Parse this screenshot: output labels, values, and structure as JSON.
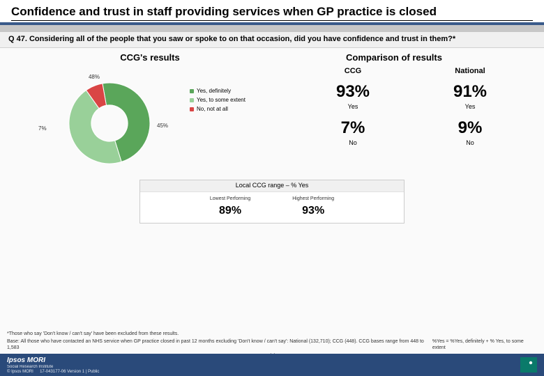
{
  "title": "Confidence and trust in staff providing services when GP practice is closed",
  "question": "Q 47. Considering all of the people that you saw or spoke to on that occasion, did you have confidence and trust in them?*",
  "subhead_left": "CCG's results",
  "subhead_right": "Comparison of results",
  "pie": {
    "type": "pie",
    "slices": [
      {
        "label": "Yes, definitely",
        "value": 48,
        "color": "#5aa65a",
        "text": "48%"
      },
      {
        "label": "Yes, to some extent",
        "value": 45,
        "color": "#99d099",
        "text": "45%"
      },
      {
        "label": "No, not at all",
        "value": 7,
        "color": "#d94545",
        "text": "7%"
      }
    ],
    "inner_radius_ratio": 0.45,
    "background_color": "#ffffff",
    "label_fontsize": 8
  },
  "legend": {
    "items": [
      {
        "sw": "#5aa65a",
        "label": "Yes, definitely"
      },
      {
        "sw": "#99d099",
        "label": "Yes, to some extent"
      },
      {
        "sw": "#d94545",
        "label": "No, not at all"
      }
    ]
  },
  "comparison": {
    "head": {
      "left": "CCG",
      "right": "National"
    },
    "rows": [
      {
        "left_big": "93%",
        "right_big": "91%",
        "sub": "Yes"
      },
      {
        "left_big": "7%",
        "right_big": "9%",
        "sub": "No"
      }
    ]
  },
  "range": {
    "title": "Local CCG range – % Yes",
    "low_label": "Lowest\nPerforming",
    "low_value": "89%",
    "high_label": "Highest\nPerforming",
    "high_value": "93%"
  },
  "footnotes": {
    "note1": "*Those who say 'Don't know / can't say' have been excluded from these results.",
    "note2_left": "Base: All those who have contacted an NHS service when GP practice closed in past 12 months excluding 'Don't know / can't say': National (132,710); CCG (448). CCG bases range from 448 to 1,583",
    "note2_right": "%Yes = %Yes, definitely + % Yes, to some extent"
  },
  "page_number": "44",
  "footer": {
    "brand": "Ipsos MORI",
    "sub1": "Social Research Institute",
    "sub2": "© Ipsos MORI   17-043177-06 Version 1 | Public"
  },
  "colors": {
    "header_bar": "#3a5a8a",
    "footer_bg": "#2a4a7a",
    "logo_bg": "#0a7a6a"
  }
}
